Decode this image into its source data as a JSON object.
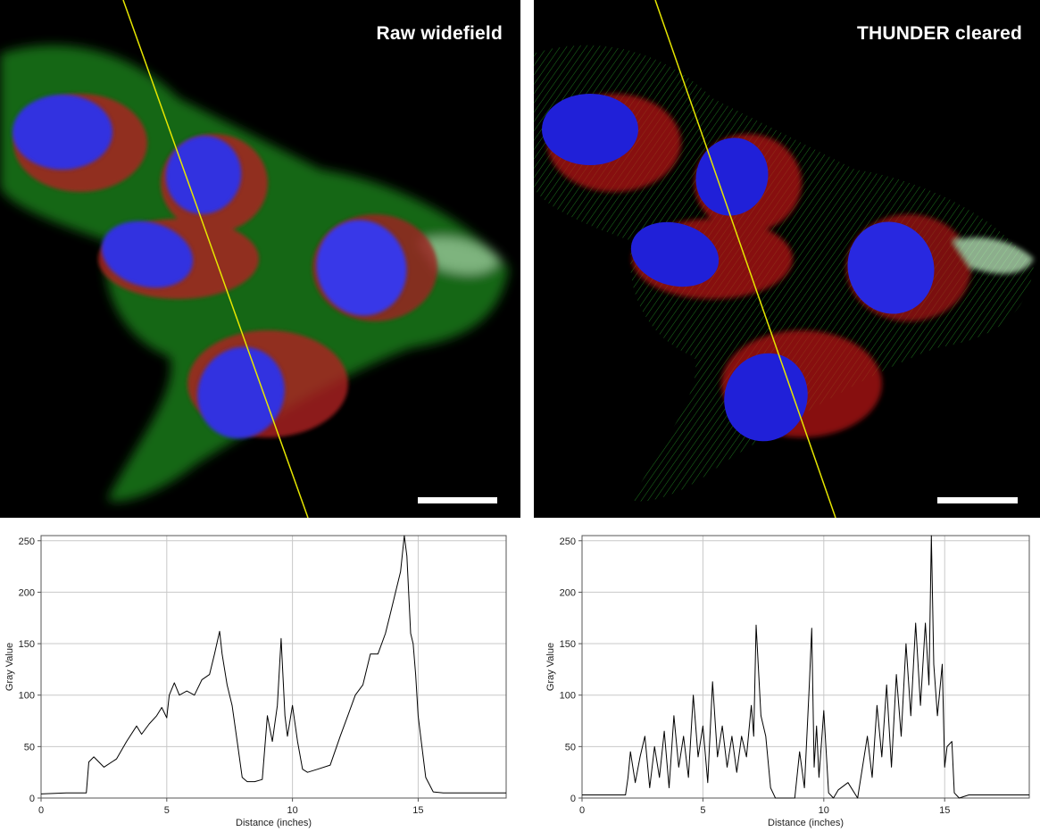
{
  "panels": {
    "left": {
      "title": "Raw widefield"
    },
    "right": {
      "title": "THUNDER cleared"
    }
  },
  "colors": {
    "actin": "#2fbf2f",
    "mito": "#e02828",
    "nucleus": "#2a2ae0",
    "tubulin": "#d8d8d8",
    "line_profile": "#e6e600",
    "plot_line": "#000000",
    "grid": "#c8c8c8"
  },
  "chart_data": [
    {
      "type": "line",
      "title": "",
      "xlabel": "Distance (inches)",
      "ylabel": "Gray Value",
      "xlim": [
        0,
        18.5
      ],
      "ylim": [
        0,
        255
      ],
      "xticks": [
        0,
        5,
        10,
        15
      ],
      "yticks": [
        0,
        50,
        100,
        150,
        200,
        250
      ],
      "grid": true,
      "series": [
        {
          "x": [
            0,
            1,
            1.8,
            1.9,
            2.1,
            2.5,
            3,
            3.4,
            3.8,
            4.0,
            4.3,
            4.6,
            4.8,
            5.0,
            5.1,
            5.3,
            5.5,
            5.8,
            6.1,
            6.4,
            6.7,
            6.9,
            7.1,
            7.2,
            7.4,
            7.6,
            7.8,
            8.0,
            8.2,
            8.5,
            8.8,
            9.0,
            9.2,
            9.4,
            9.55,
            9.7,
            9.8,
            10.0,
            10.2,
            10.4,
            10.6,
            11,
            11.5,
            11.9,
            12.2,
            12.5,
            12.8,
            13.1,
            13.4,
            13.7,
            13.9,
            14.1,
            14.3,
            14.45,
            14.55,
            14.7,
            14.8,
            14.9,
            15.0,
            15.1,
            15.3,
            15.6,
            16,
            17,
            18.5
          ],
          "y": [
            4,
            5,
            5,
            35,
            40,
            30,
            38,
            55,
            70,
            62,
            72,
            80,
            88,
            78,
            100,
            112,
            100,
            104,
            100,
            115,
            120,
            140,
            162,
            140,
            110,
            90,
            55,
            20,
            16,
            16,
            18,
            80,
            55,
            90,
            155,
            80,
            60,
            90,
            55,
            28,
            25,
            28,
            32,
            60,
            80,
            100,
            110,
            140,
            140,
            160,
            180,
            200,
            220,
            255,
            235,
            160,
            150,
            120,
            80,
            60,
            20,
            6,
            5,
            5,
            5
          ]
        }
      ]
    },
    {
      "type": "line",
      "title": "",
      "xlabel": "Distance (inches)",
      "ylabel": "Gray Value",
      "xlim": [
        0,
        18.5
      ],
      "ylim": [
        0,
        255
      ],
      "xticks": [
        0,
        5,
        10,
        15
      ],
      "yticks": [
        0,
        50,
        100,
        150,
        200,
        250
      ],
      "grid": true,
      "series": [
        {
          "x": [
            0,
            1,
            1.8,
            1.9,
            2.0,
            2.2,
            2.4,
            2.6,
            2.8,
            3.0,
            3.2,
            3.4,
            3.6,
            3.8,
            4.0,
            4.2,
            4.4,
            4.6,
            4.8,
            5.0,
            5.2,
            5.4,
            5.6,
            5.8,
            6.0,
            6.2,
            6.4,
            6.6,
            6.8,
            7.0,
            7.1,
            7.2,
            7.4,
            7.6,
            7.8,
            8.0,
            8.2,
            8.5,
            8.8,
            9.0,
            9.2,
            9.4,
            9.5,
            9.6,
            9.7,
            9.8,
            10.0,
            10.2,
            10.4,
            10.6,
            11.0,
            11.4,
            11.8,
            12.0,
            12.2,
            12.4,
            12.6,
            12.8,
            13.0,
            13.2,
            13.4,
            13.6,
            13.8,
            14.0,
            14.2,
            14.35,
            14.45,
            14.55,
            14.7,
            14.9,
            15.0,
            15.1,
            15.3,
            15.4,
            15.6,
            16,
            17,
            18.5
          ],
          "y": [
            3,
            3,
            3,
            20,
            45,
            15,
            40,
            60,
            10,
            50,
            20,
            65,
            10,
            80,
            30,
            60,
            20,
            100,
            40,
            70,
            15,
            113,
            40,
            70,
            30,
            60,
            25,
            60,
            40,
            90,
            60,
            168,
            80,
            60,
            10,
            0,
            0,
            0,
            0,
            45,
            10,
            110,
            165,
            30,
            70,
            20,
            85,
            5,
            0,
            8,
            15,
            0,
            60,
            20,
            90,
            40,
            110,
            30,
            120,
            60,
            150,
            80,
            170,
            90,
            170,
            110,
            255,
            130,
            80,
            130,
            30,
            50,
            55,
            5,
            0,
            3,
            3,
            3
          ]
        }
      ]
    }
  ]
}
